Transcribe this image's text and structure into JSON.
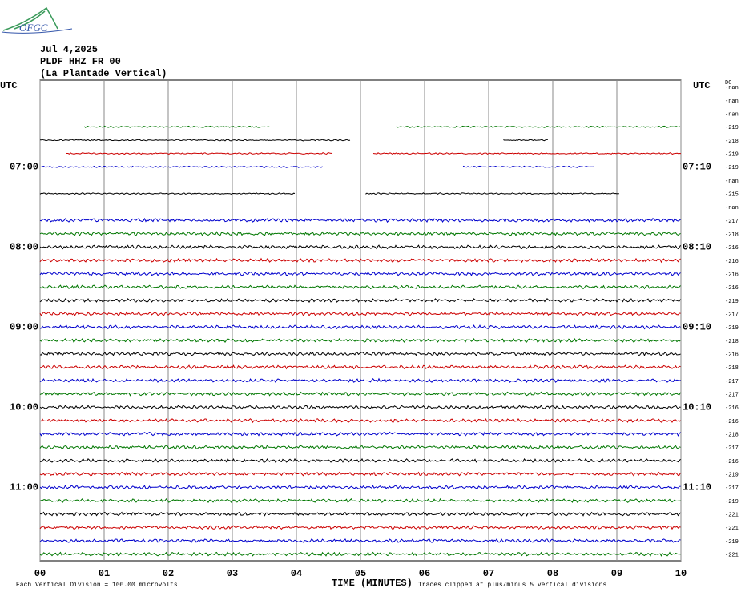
{
  "logo": "OFGC",
  "header": {
    "date": "Jul 4,2025",
    "station": "PLDF HHZ FR 00",
    "name": "(La Plantade Vertical)"
  },
  "left_axis": {
    "title": "UTC",
    "labels": [
      "07:00",
      "08:00",
      "09:00",
      "10:00",
      "11:00"
    ]
  },
  "right_axis": {
    "title": "UTC",
    "labels": [
      "07:10",
      "08:10",
      "09:10",
      "10:10",
      "11:10"
    ],
    "dc_title": "DC"
  },
  "xticks": [
    {
      "value": 0,
      "label": "00"
    },
    {
      "value": 1,
      "label": "01"
    },
    {
      "value": 2,
      "label": "02"
    },
    {
      "value": 3,
      "label": "03"
    },
    {
      "value": 4,
      "label": "04"
    },
    {
      "value": 5,
      "label": "05"
    },
    {
      "value": 6,
      "label": "06"
    },
    {
      "value": 7,
      "label": "07"
    },
    {
      "value": 8,
      "label": "08"
    },
    {
      "value": 9,
      "label": "09"
    },
    {
      "value": 10,
      "label": "10"
    }
  ],
  "xlim": [
    0,
    10
  ],
  "colors": [
    "#000000",
    "#cc0000",
    "#0000cc",
    "#007700"
  ],
  "rows": [
    {
      "dc": "-nan",
      "segments": []
    },
    {
      "dc": "-nan",
      "segments": []
    },
    {
      "dc": "-nan",
      "segments": []
    },
    {
      "dc": "-219",
      "segments": [
        [
          0.69,
          3.59
        ],
        [
          5.56,
          10
        ]
      ]
    },
    {
      "dc": "-218",
      "segments": [
        [
          0,
          4.84
        ],
        [
          7.23,
          7.93
        ]
      ]
    },
    {
      "dc": "-219",
      "segments": [
        [
          0.4,
          4.58
        ],
        [
          5.2,
          10
        ]
      ]
    },
    {
      "dc": "-219",
      "segments": [
        [
          0,
          4.41
        ],
        [
          6.6,
          8.66
        ]
      ]
    },
    {
      "dc": "-nan",
      "segments": []
    },
    {
      "dc": "-215",
      "segments": [
        [
          0,
          3.99
        ],
        [
          5.08,
          9.05
        ]
      ]
    },
    {
      "dc": "-nan",
      "segments": []
    },
    {
      "dc": "-217",
      "segments": [
        [
          0,
          10
        ]
      ]
    },
    {
      "dc": "-218",
      "segments": [
        [
          0,
          10
        ]
      ]
    },
    {
      "dc": "-216",
      "segments": [
        [
          0,
          10
        ]
      ]
    },
    {
      "dc": "-216",
      "segments": [
        [
          0,
          10
        ]
      ]
    },
    {
      "dc": "-216",
      "segments": [
        [
          0,
          10
        ]
      ]
    },
    {
      "dc": "-216",
      "segments": [
        [
          0,
          10
        ]
      ]
    },
    {
      "dc": "-219",
      "segments": [
        [
          0,
          10
        ]
      ]
    },
    {
      "dc": "-217",
      "segments": [
        [
          0,
          10
        ]
      ]
    },
    {
      "dc": "-219",
      "segments": [
        [
          0,
          10
        ]
      ]
    },
    {
      "dc": "-218",
      "segments": [
        [
          0,
          10
        ]
      ]
    },
    {
      "dc": "-216",
      "segments": [
        [
          0,
          10
        ]
      ]
    },
    {
      "dc": "-218",
      "segments": [
        [
          0,
          10
        ]
      ]
    },
    {
      "dc": "-217",
      "segments": [
        [
          0,
          10
        ]
      ]
    },
    {
      "dc": "-217",
      "segments": [
        [
          0,
          10
        ]
      ]
    },
    {
      "dc": "-216",
      "segments": [
        [
          0,
          10
        ]
      ]
    },
    {
      "dc": "-216",
      "segments": [
        [
          0,
          10
        ]
      ]
    },
    {
      "dc": "-218",
      "segments": [
        [
          0,
          10
        ]
      ]
    },
    {
      "dc": "-217",
      "segments": [
        [
          0,
          10
        ]
      ]
    },
    {
      "dc": "-216",
      "segments": [
        [
          0,
          10
        ]
      ]
    },
    {
      "dc": "-219",
      "segments": [
        [
          0,
          10
        ]
      ]
    },
    {
      "dc": "-217",
      "segments": [
        [
          0,
          10
        ]
      ]
    },
    {
      "dc": "-219",
      "segments": [
        [
          0,
          10
        ]
      ]
    },
    {
      "dc": "-221",
      "segments": [
        [
          0,
          10
        ]
      ]
    },
    {
      "dc": "-221",
      "segments": [
        [
          0,
          10
        ]
      ]
    },
    {
      "dc": "-219",
      "segments": [
        [
          0,
          10
        ]
      ]
    },
    {
      "dc": "-221",
      "segments": [
        [
          0,
          10
        ]
      ]
    }
  ],
  "footer": {
    "division": "Each Vertical Division =  100.00 microvolts",
    "xlabel": "TIME (MINUTES)",
    "clip": "Traces clipped at plus/minus 5 vertical divisions"
  }
}
